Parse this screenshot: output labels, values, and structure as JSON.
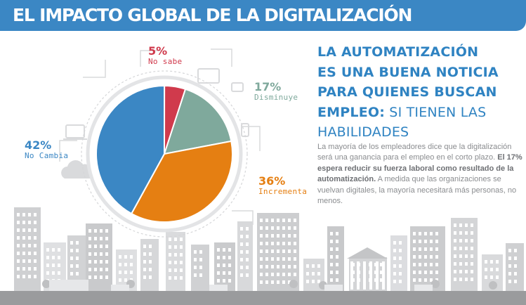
{
  "header": {
    "title": "EL IMPACTO GLOBAL DE LA DIGITALIZACIÓN"
  },
  "headline": {
    "line1": "LA AUTOMATIZACIÓN",
    "line2": "ES UNA BUENA NOTICIA",
    "line3": "PARA QUIENES BUSCAN",
    "line4_bold": "EMPLEO:",
    "line4_rest": " SI TIENEN LAS",
    "line5": "HABILIDADES"
  },
  "body": {
    "part1": "La mayoría de los empleadores dice que la digitalización será una ganancia para el empleo en el corto plazo. ",
    "bold": "El 17% espera reducir su fuerza laboral como resultado de la automatización.",
    "part2": " A medida que las organizaciones se vuelvan digitales, la mayoría necesitará más personas, no menos."
  },
  "chart_data": {
    "type": "pie",
    "slices": [
      {
        "label": "No sabe",
        "value": 5,
        "value_label": "5%",
        "color": "#d03a4c"
      },
      {
        "label": "Disminuye",
        "value": 17,
        "value_label": "17%",
        "color": "#7fa99c"
      },
      {
        "label": "Incrementa",
        "value": 36,
        "value_label": "36%",
        "color": "#e57f12"
      },
      {
        "label": "No Cambia",
        "value": 42,
        "value_label": "42%",
        "color": "#3b87c4"
      }
    ]
  },
  "colors": {
    "header": "#3b87c4",
    "skyline": "#d5d6d8",
    "ground": "#9a9b9d"
  }
}
